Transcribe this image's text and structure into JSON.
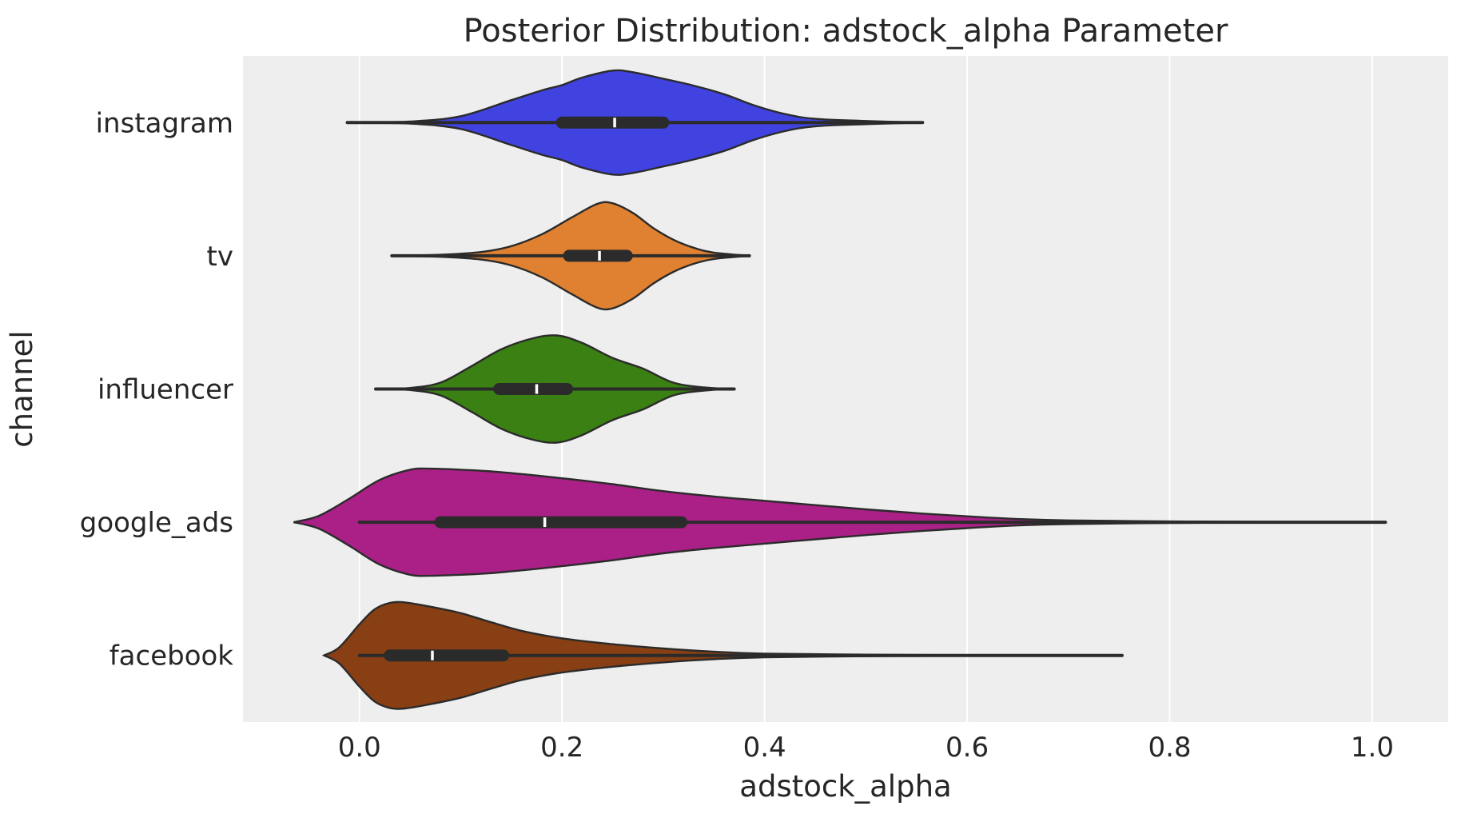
{
  "chart_data": {
    "type": "violin",
    "title": "Posterior Distribution: adstock_alpha Parameter",
    "xlabel": "adstock_alpha",
    "ylabel": "channel",
    "xlim": [
      -0.115,
      1.075
    ],
    "xticks": [
      0.0,
      0.2,
      0.4,
      0.6,
      0.8,
      1.0
    ],
    "xtick_labels": [
      "0.0",
      "0.2",
      "0.4",
      "0.6",
      "0.8",
      "1.0"
    ],
    "grid": "x",
    "background": "#eeeeee",
    "series": [
      {
        "name": "instagram",
        "color": "#4043df",
        "median": 0.252,
        "q1": 0.2,
        "q3": 0.3,
        "whisker_low": -0.012,
        "whisker_high": 0.556,
        "density_profile": [
          [
            -0.012,
            0.0
          ],
          [
            0.05,
            0.02
          ],
          [
            0.1,
            0.12
          ],
          [
            0.15,
            0.42
          ],
          [
            0.18,
            0.6
          ],
          [
            0.2,
            0.7
          ],
          [
            0.22,
            0.84
          ],
          [
            0.25,
            0.97
          ],
          [
            0.27,
            0.94
          ],
          [
            0.3,
            0.82
          ],
          [
            0.33,
            0.69
          ],
          [
            0.36,
            0.53
          ],
          [
            0.39,
            0.32
          ],
          [
            0.42,
            0.16
          ],
          [
            0.45,
            0.07
          ],
          [
            0.5,
            0.03
          ],
          [
            0.556,
            0.0
          ]
        ]
      },
      {
        "name": "tv",
        "color": "#e08131",
        "median": 0.237,
        "q1": 0.207,
        "q3": 0.264,
        "whisker_low": 0.032,
        "whisker_high": 0.385,
        "density_profile": [
          [
            0.032,
            0.0
          ],
          [
            0.08,
            0.02
          ],
          [
            0.12,
            0.07
          ],
          [
            0.15,
            0.18
          ],
          [
            0.18,
            0.4
          ],
          [
            0.21,
            0.72
          ],
          [
            0.235,
            0.97
          ],
          [
            0.25,
            0.98
          ],
          [
            0.27,
            0.8
          ],
          [
            0.29,
            0.52
          ],
          [
            0.31,
            0.3
          ],
          [
            0.33,
            0.15
          ],
          [
            0.35,
            0.06
          ],
          [
            0.385,
            0.0
          ]
        ]
      },
      {
        "name": "influencer",
        "color": "#3a8012",
        "median": 0.175,
        "q1": 0.138,
        "q3": 0.205,
        "whisker_low": 0.016,
        "whisker_high": 0.37,
        "density_profile": [
          [
            0.016,
            0.0
          ],
          [
            0.05,
            0.02
          ],
          [
            0.08,
            0.12
          ],
          [
            0.11,
            0.42
          ],
          [
            0.14,
            0.74
          ],
          [
            0.17,
            0.94
          ],
          [
            0.195,
            1.0
          ],
          [
            0.22,
            0.86
          ],
          [
            0.25,
            0.58
          ],
          [
            0.28,
            0.38
          ],
          [
            0.31,
            0.12
          ],
          [
            0.34,
            0.03
          ],
          [
            0.37,
            0.0
          ]
        ]
      },
      {
        "name": "google_ads",
        "color": "#aa2087",
        "median": 0.183,
        "q1": 0.08,
        "q3": 0.318,
        "whisker_low": 0.0,
        "whisker_high": 1.013,
        "density_profile": [
          [
            -0.065,
            0.0
          ],
          [
            -0.04,
            0.12
          ],
          [
            -0.01,
            0.44
          ],
          [
            0.02,
            0.79
          ],
          [
            0.05,
            0.98
          ],
          [
            0.07,
            1.0
          ],
          [
            0.1,
            0.98
          ],
          [
            0.13,
            0.95
          ],
          [
            0.17,
            0.88
          ],
          [
            0.21,
            0.8
          ],
          [
            0.25,
            0.71
          ],
          [
            0.3,
            0.58
          ],
          [
            0.35,
            0.48
          ],
          [
            0.4,
            0.4
          ],
          [
            0.45,
            0.32
          ],
          [
            0.5,
            0.24
          ],
          [
            0.55,
            0.17
          ],
          [
            0.6,
            0.11
          ],
          [
            0.65,
            0.06
          ],
          [
            0.7,
            0.035
          ],
          [
            0.8,
            0.015
          ],
          [
            0.9,
            0.005
          ],
          [
            1.013,
            0.0
          ]
        ]
      },
      {
        "name": "facebook",
        "color": "#873f13",
        "median": 0.072,
        "q1": 0.03,
        "q3": 0.142,
        "whisker_low": 0.0,
        "whisker_high": 0.753,
        "density_profile": [
          [
            -0.035,
            0.0
          ],
          [
            -0.02,
            0.15
          ],
          [
            0.0,
            0.58
          ],
          [
            0.015,
            0.86
          ],
          [
            0.03,
            0.98
          ],
          [
            0.045,
            0.99
          ],
          [
            0.07,
            0.91
          ],
          [
            0.1,
            0.79
          ],
          [
            0.13,
            0.62
          ],
          [
            0.16,
            0.46
          ],
          [
            0.2,
            0.32
          ],
          [
            0.25,
            0.21
          ],
          [
            0.3,
            0.13
          ],
          [
            0.35,
            0.07
          ],
          [
            0.4,
            0.035
          ],
          [
            0.5,
            0.015
          ],
          [
            0.6,
            0.006
          ],
          [
            0.753,
            0.0
          ]
        ]
      }
    ]
  }
}
